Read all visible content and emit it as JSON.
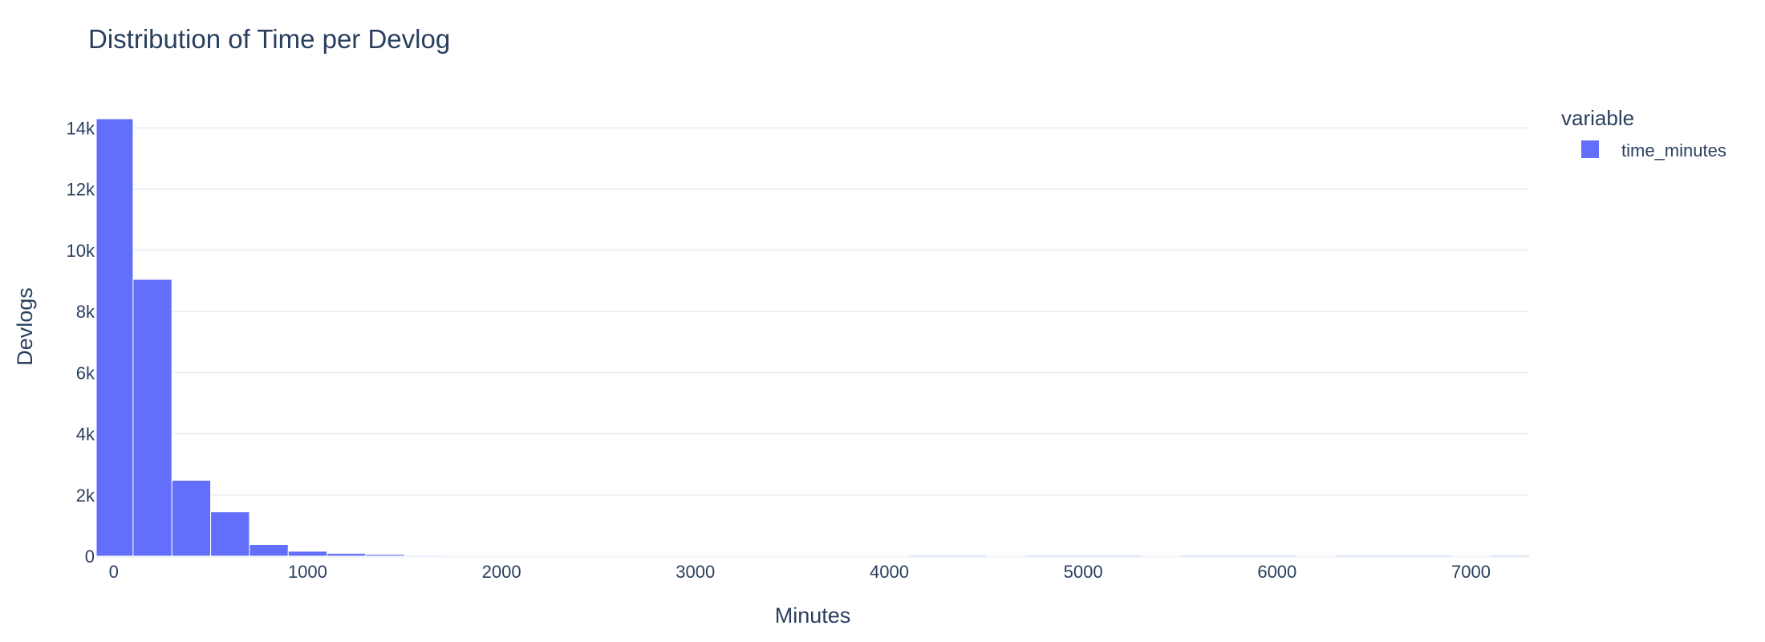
{
  "chart_data": {
    "type": "bar",
    "title": "Distribution of Time per Devlog",
    "xlabel": "Minutes",
    "ylabel": "Devlogs",
    "xlim": [
      -90,
      7300
    ],
    "ylim": [
      0,
      14300
    ],
    "x_ticks": [
      0,
      1000,
      2000,
      3000,
      4000,
      5000,
      6000,
      7000
    ],
    "y_ticks": [
      0,
      2000,
      4000,
      6000,
      8000,
      10000,
      12000,
      14000
    ],
    "y_tick_labels": [
      "0",
      "2k",
      "4k",
      "6k",
      "8k",
      "10k",
      "12k",
      "14k"
    ],
    "bin_width": 200,
    "bins": [
      {
        "x0": -100,
        "x1": 100,
        "count": 14300
      },
      {
        "x0": 100,
        "x1": 300,
        "count": 9050
      },
      {
        "x0": 300,
        "x1": 500,
        "count": 2480
      },
      {
        "x0": 500,
        "x1": 700,
        "count": 1450
      },
      {
        "x0": 700,
        "x1": 900,
        "count": 380
      },
      {
        "x0": 900,
        "x1": 1100,
        "count": 160
      },
      {
        "x0": 1100,
        "x1": 1300,
        "count": 90
      },
      {
        "x0": 1300,
        "x1": 1500,
        "count": 55
      },
      {
        "x0": 1500,
        "x1": 1700,
        "count": 30
      },
      {
        "x0": 1700,
        "x1": 1900,
        "count": 15
      },
      {
        "x0": 1900,
        "x1": 2100,
        "count": 10
      },
      {
        "x0": 2100,
        "x1": 2300,
        "count": 6
      },
      {
        "x0": 2300,
        "x1": 2500,
        "count": 4
      },
      {
        "x0": 2500,
        "x1": 2700,
        "count": 3
      },
      {
        "x0": 2700,
        "x1": 2900,
        "count": 2
      },
      {
        "x0": 2900,
        "x1": 3100,
        "count": 2
      },
      {
        "x0": 3100,
        "x1": 3300,
        "count": 1
      },
      {
        "x0": 3300,
        "x1": 3500,
        "count": 1
      },
      {
        "x0": 3500,
        "x1": 3700,
        "count": 1
      },
      {
        "x0": 3700,
        "x1": 3900,
        "count": 1
      },
      {
        "x0": 3900,
        "x1": 4100,
        "count": 1
      },
      {
        "x0": 4500,
        "x1": 4700,
        "count": 1
      },
      {
        "x0": 5300,
        "x1": 5500,
        "count": 1
      },
      {
        "x0": 6100,
        "x1": 6300,
        "count": 1
      },
      {
        "x0": 6900,
        "x1": 7100,
        "count": 1
      }
    ],
    "grid": true,
    "legend": {
      "title": "variable",
      "position": "top-right",
      "entries": [
        {
          "name": "time_minutes",
          "color": "#636efa"
        }
      ]
    },
    "colors": {
      "bar": "#636efa",
      "grid": "#e5ecf6",
      "text": "#2a3f5f"
    }
  }
}
